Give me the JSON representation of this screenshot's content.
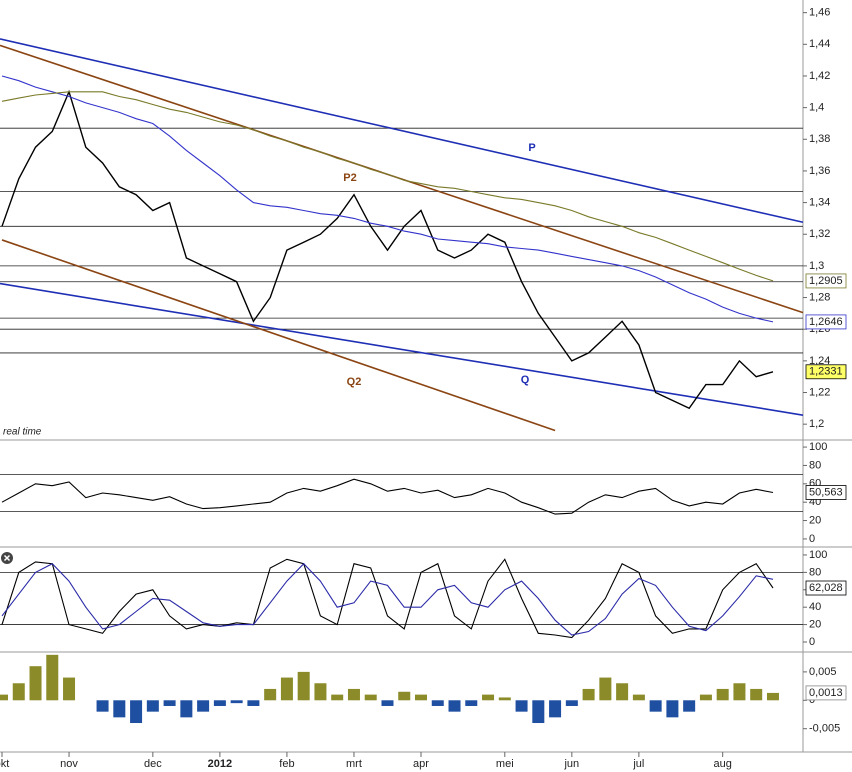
{
  "chart_data": [
    {
      "type": "line",
      "annotation": "real time",
      "ylim": [
        1.19,
        1.468
      ],
      "yticks": [
        {
          "value": 1.46,
          "label": "1,46"
        },
        {
          "value": 1.44,
          "label": "1,44"
        },
        {
          "value": 1.42,
          "label": "1,42"
        },
        {
          "value": 1.4,
          "label": "1,4"
        },
        {
          "value": 1.38,
          "label": "1,38"
        },
        {
          "value": 1.36,
          "label": "1,36"
        },
        {
          "value": 1.34,
          "label": "1,34"
        },
        {
          "value": 1.32,
          "label": "1,32"
        },
        {
          "value": 1.3,
          "label": "1,3"
        },
        {
          "value": 1.28,
          "label": "1,28"
        },
        {
          "value": 1.26,
          "label": "1,26"
        },
        {
          "value": 1.24,
          "label": "1,24"
        },
        {
          "value": 1.22,
          "label": "1,22"
        },
        {
          "value": 1.2,
          "label": "1,2"
        }
      ],
      "levels": [
        1.387,
        1.347,
        1.325,
        1.3,
        1.29,
        1.267,
        1.26,
        1.245
      ],
      "series": [
        {
          "color": "#000000",
          "label_fill": "#ffff66",
          "last_label": "1,2331",
          "values": [
            1.325,
            1.355,
            1.375,
            1.385,
            1.41,
            1.375,
            1.365,
            1.35,
            1.345,
            1.335,
            1.34,
            1.305,
            1.3,
            1.295,
            1.29,
            1.265,
            1.28,
            1.31,
            1.315,
            1.32,
            1.33,
            1.345,
            1.325,
            1.31,
            1.325,
            1.335,
            1.31,
            1.305,
            1.31,
            1.32,
            1.315,
            1.29,
            1.27,
            1.255,
            1.24,
            1.245,
            1.255,
            1.265,
            1.25,
            1.22,
            1.215,
            1.21,
            1.225,
            1.225,
            1.24,
            1.23,
            1.2331
          ]
        },
        {
          "color": "#3333cc",
          "label_fill": "#ffffff",
          "last_label": "1,2646",
          "values": [
            1.42,
            1.417,
            1.413,
            1.41,
            1.407,
            1.403,
            1.4,
            1.397,
            1.393,
            1.39,
            1.382,
            1.373,
            1.365,
            1.357,
            1.348,
            1.34,
            1.338,
            1.337,
            1.335,
            1.333,
            1.332,
            1.33,
            1.327,
            1.325,
            1.322,
            1.32,
            1.317,
            1.316,
            1.315,
            1.314,
            1.312,
            1.311,
            1.31,
            1.308,
            1.306,
            1.304,
            1.302,
            1.3,
            1.297,
            1.293,
            1.288,
            1.283,
            1.279,
            1.274,
            1.27,
            1.267,
            1.2646
          ]
        },
        {
          "color": "#7a7a2a",
          "label_fill": "#ffffff",
          "last_label": "1,2905",
          "values": [
            1.404,
            1.406,
            1.408,
            1.409,
            1.41,
            1.41,
            1.41,
            1.407,
            1.405,
            1.402,
            1.399,
            1.397,
            1.394,
            1.391,
            1.389,
            1.386,
            1.382,
            1.379,
            1.375,
            1.372,
            1.368,
            1.365,
            1.361,
            1.358,
            1.354,
            1.352,
            1.35,
            1.349,
            1.347,
            1.345,
            1.343,
            1.342,
            1.34,
            1.338,
            1.335,
            1.331,
            1.328,
            1.325,
            1.321,
            1.318,
            1.314,
            1.31,
            1.306,
            1.302,
            1.298,
            1.294,
            1.2905
          ]
        }
      ],
      "trendlines": [
        {
          "label": "P",
          "color": "#1f2fb5",
          "from": [
            0,
            1.4431
          ],
          "to": [
            46,
            1.3319
          ],
          "extend": true
        },
        {
          "label": "P2",
          "color": "#8b4513",
          "from": [
            0,
            1.4389
          ],
          "to": [
            46,
            1.2768
          ],
          "extend": true
        },
        {
          "label": "Q",
          "color": "#1f2fb5",
          "from": [
            15,
            1.2626
          ],
          "to": [
            46,
            1.2088
          ],
          "extend": true
        },
        {
          "label": "Q2",
          "color": "#8b4513",
          "from": [
            0,
            1.3164
          ],
          "to": [
            33,
            1.196
          ],
          "extend": false
        }
      ]
    },
    {
      "type": "line",
      "ylim": [
        -7.7,
        107.7
      ],
      "yticks": [
        0,
        20,
        40,
        60,
        80,
        100
      ],
      "levels": [
        30,
        70
      ],
      "series": [
        {
          "color": "#000000",
          "label_fill": "#ffffff",
          "last_label": "50,563",
          "values": [
            40,
            50,
            60,
            58,
            62,
            45,
            50,
            48,
            45,
            42,
            46,
            38,
            33,
            34,
            36,
            38,
            40,
            50,
            55,
            52,
            58,
            65,
            60,
            52,
            55,
            50,
            53,
            45,
            48,
            55,
            50,
            40,
            34,
            27,
            28,
            40,
            48,
            45,
            52,
            55,
            42,
            36,
            40,
            38,
            50,
            54,
            50.563
          ]
        }
      ]
    },
    {
      "type": "line",
      "ylim": [
        -11.5,
        108
      ],
      "yticks": [
        0,
        20,
        40,
        60,
        80,
        100
      ],
      "levels": [
        20,
        80
      ],
      "series": [
        {
          "color": "#000000",
          "label_fill": "#ffffff",
          "last_label": "62,028",
          "values": [
            20,
            80,
            92,
            90,
            20,
            15,
            10,
            35,
            55,
            60,
            30,
            15,
            20,
            18,
            22,
            20,
            85,
            95,
            90,
            30,
            20,
            90,
            85,
            30,
            15,
            80,
            90,
            30,
            15,
            70,
            95,
            50,
            10,
            8,
            5,
            25,
            50,
            90,
            80,
            30,
            10,
            15,
            15,
            60,
            80,
            90,
            62.028
          ]
        },
        {
          "color": "#2a2aa8",
          "values": [
            30,
            55,
            80,
            90,
            70,
            40,
            15,
            20,
            35,
            50,
            48,
            35,
            22,
            18,
            20,
            20,
            45,
            70,
            90,
            70,
            40,
            45,
            70,
            65,
            40,
            40,
            60,
            65,
            45,
            40,
            60,
            70,
            50,
            25,
            8,
            12,
            27,
            55,
            73,
            65,
            40,
            18,
            13,
            30,
            52,
            76,
            72
          ]
        }
      ]
    },
    {
      "type": "bar",
      "ylim": [
        -0.0091,
        0.0085
      ],
      "yticks": [
        {
          "value": 0.005,
          "label": "0,005"
        },
        {
          "value": 0,
          "label": "0"
        },
        {
          "value": -0.005,
          "label": "-0,005"
        }
      ],
      "positive_color": "#8b8b2a",
      "negative_color": "#1f4fa0",
      "categories": [
        "okt",
        null,
        null,
        null,
        "nov",
        null,
        null,
        null,
        null,
        "dec",
        null,
        null,
        null,
        "2012",
        null,
        null,
        null,
        "feb",
        null,
        null,
        null,
        "mrt",
        null,
        null,
        null,
        "apr",
        null,
        null,
        null,
        null,
        "mei",
        null,
        null,
        null,
        "jun",
        null,
        null,
        null,
        "jul",
        null,
        null,
        null,
        null,
        "aug",
        null,
        null,
        null
      ],
      "series": [
        {
          "label_fill": "#ffffff",
          "last_label": "0,0013",
          "values": [
            0.001,
            0.003,
            0.006,
            0.008,
            0.004,
            0,
            -0.002,
            -0.003,
            -0.004,
            -0.002,
            -0.001,
            -0.003,
            -0.002,
            -0.001,
            -0.0005,
            -0.001,
            0.002,
            0.004,
            0.005,
            0.003,
            0.001,
            0.002,
            0.001,
            -0.001,
            0.0015,
            0.001,
            -0.001,
            -0.002,
            -0.001,
            0.001,
            0.0005,
            -0.002,
            -0.004,
            -0.003,
            -0.001,
            0.002,
            0.004,
            0.003,
            0.001,
            -0.002,
            -0.003,
            -0.002,
            0.001,
            0.002,
            0.003,
            0.002,
            0.0013
          ]
        }
      ]
    }
  ]
}
